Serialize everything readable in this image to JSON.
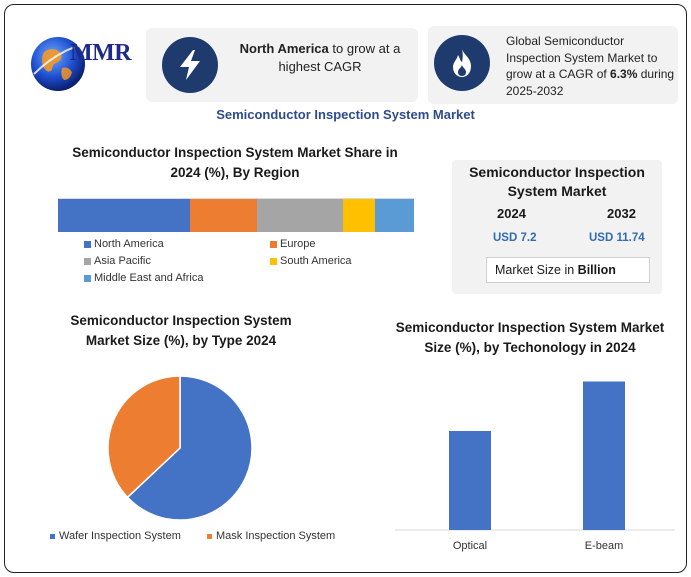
{
  "brand": {
    "logo_text": "MMR",
    "logo_icon": "globe-logo-icon"
  },
  "highlight_cards": [
    {
      "icon": "lightning-bolt-icon",
      "bold": "North America",
      "text": " to grow at a highest CAGR"
    },
    {
      "icon": "flame-icon",
      "text": "Global Semiconductor Inspection System Market to grow at a CAGR of ",
      "bold": "6.3%",
      "text_after": " during 2025-2032"
    }
  ],
  "main_title": "Semiconductor Inspection System Market",
  "market_panel": {
    "title": "Semiconductor Inspection System Market",
    "year_1": "2024",
    "value_1": "USD 7.2",
    "year_2": "2032",
    "value_2": "USD 11.74",
    "unit_prefix": "Market Size in ",
    "unit_bold": "Billion"
  },
  "chart_data": [
    {
      "type": "bar",
      "stacked": true,
      "orientation": "horizontal",
      "title": "Semiconductor Inspection System Market Share in 2024 (%), By Region",
      "categories": [
        "2024"
      ],
      "series": [
        {
          "name": "North America",
          "values": [
            37
          ],
          "color": "#4472c4"
        },
        {
          "name": "Europe",
          "values": [
            19
          ],
          "color": "#ed7d31"
        },
        {
          "name": "Asia Pacific",
          "values": [
            24
          ],
          "color": "#a5a5a5"
        },
        {
          "name": "South America",
          "values": [
            9
          ],
          "color": "#ffc000"
        },
        {
          "name": "Middle East and Africa",
          "values": [
            11
          ],
          "color": "#5b9bd5"
        }
      ],
      "legend": "bottom"
    },
    {
      "type": "pie",
      "title": "Semiconductor Inspection System Market Size (%), by Type 2024",
      "labels": [
        "Wafer Inspection System",
        "Mask Inspection System"
      ],
      "values": [
        63,
        37
      ],
      "colors": [
        "#4472c4",
        "#ed7d31"
      ],
      "legend": "bottom"
    },
    {
      "type": "bar",
      "title": "Semiconductor Inspection System Market  Size (%), by Techonology in 2024",
      "categories": [
        "Optical",
        "E-beam"
      ],
      "values": [
        42,
        63
      ],
      "ylim": [
        0,
        70
      ],
      "color": "#4472c4",
      "grid": false
    }
  ]
}
